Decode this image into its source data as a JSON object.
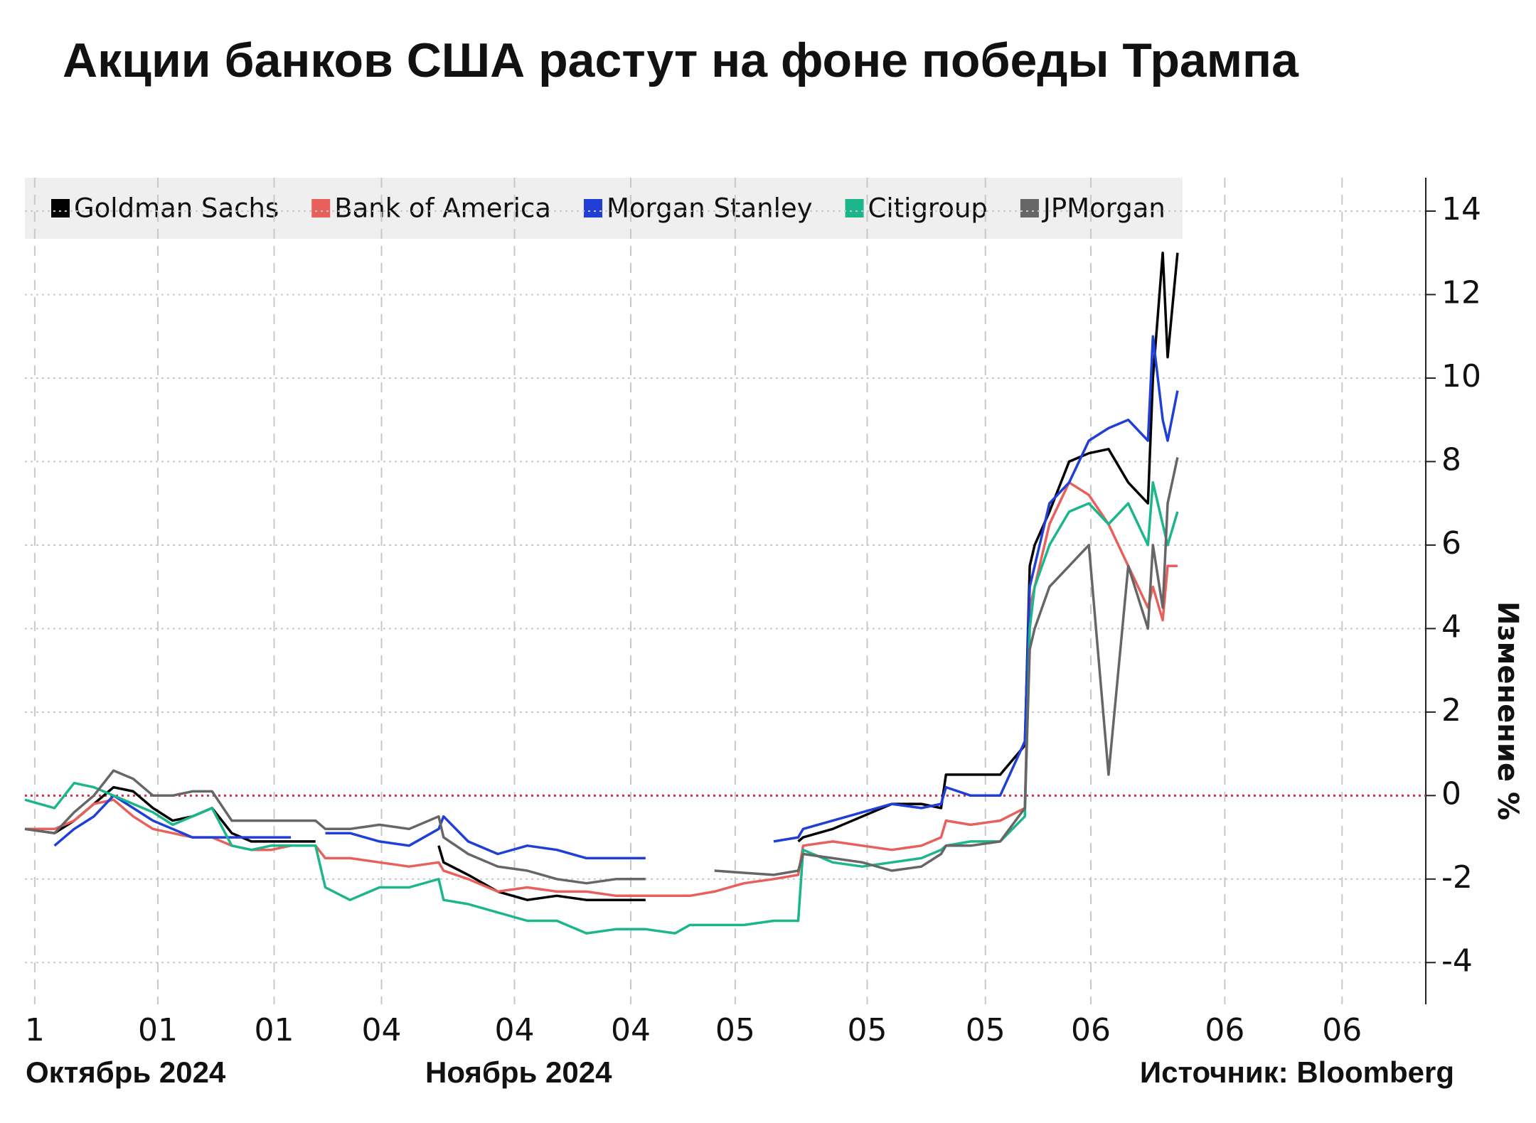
{
  "chart_data": {
    "type": "line",
    "title": "Акции банков США растут на фоне победы Трампа",
    "y_label": "Изменение %",
    "month_labels": [
      "Октябрь 2024",
      "Ноябрь 2024"
    ],
    "source": "Источник: Bloomberg",
    "x": [
      0,
      3,
      5,
      7,
      9,
      11,
      13,
      15,
      17,
      19,
      21,
      23,
      25,
      27,
      29.5,
      30.5,
      33,
      36,
      39,
      42,
      42.5,
      45,
      48,
      51,
      54,
      57,
      60,
      63,
      66,
      67.5,
      70,
      73,
      76,
      78.5,
      79,
      82,
      85,
      88,
      91,
      93,
      93.5,
      96,
      99,
      101.5,
      102,
      102.5,
      104,
      106,
      108,
      110,
      112,
      114,
      114.5,
      115.5,
      116,
      117
    ],
    "series": [
      {
        "name": "Goldman Sachs",
        "color": "#000000",
        "values": [
          -0.8,
          -0.9,
          -0.6,
          -0.2,
          0.2,
          0.1,
          -0.3,
          -0.6,
          -0.5,
          -0.3,
          -0.9,
          -1.1,
          -1.1,
          -1.1,
          -1.1,
          null,
          null,
          null,
          null,
          -1.2,
          -1.6,
          -1.9,
          -2.3,
          -2.5,
          -2.4,
          -2.5,
          -2.5,
          -2.5,
          null,
          null,
          null,
          null,
          null,
          -1.1,
          -1.0,
          -0.8,
          -0.5,
          -0.2,
          -0.2,
          -0.3,
          0.5,
          0.5,
          0.5,
          1.2,
          5.5,
          6.0,
          6.8,
          8.0,
          8.2,
          8.3,
          7.5,
          7.0,
          10.0,
          13.0,
          10.5,
          13.0
        ]
      },
      {
        "name": "Bank of America",
        "color": "#e8605c",
        "values": [
          -0.8,
          -0.8,
          -0.6,
          -0.2,
          -0.1,
          -0.5,
          -0.8,
          -0.9,
          -1.0,
          -1.0,
          -1.2,
          -1.3,
          -1.3,
          -1.2,
          -1.2,
          -1.5,
          -1.5,
          -1.6,
          -1.7,
          -1.6,
          -1.8,
          -2.0,
          -2.3,
          -2.2,
          -2.3,
          -2.3,
          -2.4,
          -2.4,
          -2.4,
          -2.4,
          -2.3,
          -2.1,
          -2.0,
          -1.9,
          -1.2,
          -1.1,
          -1.2,
          -1.3,
          -1.2,
          -1.0,
          -0.6,
          -0.7,
          -0.6,
          -0.3,
          4.5,
          5.0,
          6.5,
          7.5,
          7.2,
          6.5,
          5.5,
          4.5,
          5.0,
          4.2,
          5.5,
          5.5
        ]
      },
      {
        "name": "Morgan Stanley",
        "color": "#1f3fd6",
        "values": [
          null,
          -1.2,
          -0.8,
          -0.5,
          0,
          -0.3,
          -0.6,
          -0.8,
          -1.0,
          -1.0,
          -1.0,
          -1.0,
          -1.0,
          -1.0,
          null,
          -0.9,
          -0.9,
          -1.1,
          -1.2,
          -0.8,
          -0.5,
          -1.1,
          -1.4,
          -1.2,
          -1.3,
          -1.5,
          -1.5,
          -1.5,
          null,
          null,
          null,
          null,
          -1.1,
          -1.0,
          -0.8,
          -0.6,
          -0.4,
          -0.2,
          -0.3,
          -0.2,
          0.2,
          0,
          0,
          1.3,
          5.0,
          5.5,
          7.0,
          7.5,
          8.5,
          8.8,
          9.0,
          8.5,
          11.0,
          9.0,
          8.5,
          9.7
        ]
      },
      {
        "name": "Citigroup",
        "color": "#1cb68c",
        "values": [
          -0.1,
          -0.3,
          0.3,
          0.2,
          0,
          -0.2,
          -0.4,
          -0.7,
          -0.5,
          -0.3,
          -1.2,
          -1.3,
          -1.2,
          -1.2,
          -1.2,
          -2.2,
          -2.5,
          -2.2,
          -2.2,
          -2.0,
          -2.5,
          -2.6,
          -2.8,
          -3.0,
          -3.0,
          -3.3,
          -3.2,
          -3.2,
          -3.3,
          -3.1,
          -3.1,
          -3.1,
          -3.0,
          -3.0,
          -1.3,
          -1.6,
          -1.7,
          -1.6,
          -1.5,
          -1.3,
          -1.2,
          -1.1,
          -1.1,
          -0.5,
          4.0,
          5.0,
          6.0,
          6.8,
          7.0,
          6.5,
          7.0,
          6.0,
          7.5,
          6.5,
          6.0,
          6.8
        ]
      },
      {
        "name": "JPMorgan",
        "color": "#666666",
        "values": [
          -0.8,
          -0.9,
          -0.4,
          0,
          0.6,
          0.4,
          0,
          0,
          0.1,
          0.1,
          -0.6,
          -0.6,
          -0.6,
          -0.6,
          -0.6,
          -0.8,
          -0.8,
          -0.7,
          -0.8,
          -0.5,
          -1.0,
          -1.4,
          -1.7,
          -1.8,
          -2.0,
          -2.1,
          -2.0,
          -2.0,
          null,
          null,
          -1.8,
          -1.85,
          -1.9,
          -1.8,
          -1.4,
          -1.5,
          -1.6,
          -1.8,
          -1.7,
          -1.4,
          -1.2,
          -1.2,
          -1.1,
          -0.3,
          3.5,
          4.0,
          5.0,
          5.5,
          6.0,
          0.5,
          5.5,
          4.0,
          6.0,
          4.5,
          7.0,
          8.1
        ]
      }
    ],
    "xlim": [
      0,
      142.2
    ],
    "xticks": [
      {
        "value": 1,
        "label": "1"
      },
      {
        "value": 13.5,
        "label": "01"
      },
      {
        "value": 25.3,
        "label": "01"
      },
      {
        "value": 36.2,
        "label": "04"
      },
      {
        "value": 49.7,
        "label": "04"
      },
      {
        "value": 61.5,
        "label": "04"
      },
      {
        "value": 72.1,
        "label": "05"
      },
      {
        "value": 85.5,
        "label": "05"
      },
      {
        "value": 97.5,
        "label": "05"
      },
      {
        "value": 108.2,
        "label": "06"
      },
      {
        "value": 121.8,
        "label": "06"
      },
      {
        "value": 133.7,
        "label": "06"
      }
    ],
    "ylim": [
      -5,
      14.8
    ],
    "yticks": [
      -4,
      -2,
      0,
      2,
      4,
      6,
      8,
      10,
      12,
      14
    ],
    "grid": true
  }
}
